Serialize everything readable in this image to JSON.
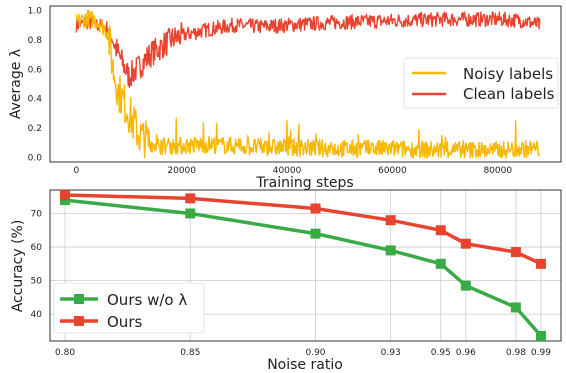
{
  "colors": {
    "noisy": "#f9b800",
    "clean": "#e8432e",
    "ours_wo": "#3aaa47",
    "ours": "#e8432e"
  },
  "chart_data": [
    {
      "type": "line",
      "xlabel": "Training steps",
      "ylabel": "Average λ",
      "xlim": [
        -5000,
        92000
      ],
      "ylim": [
        -0.03,
        1.03
      ],
      "xticks": [
        0,
        20000,
        40000,
        60000,
        80000
      ],
      "yticks": [
        0.0,
        0.2,
        0.4,
        0.6,
        0.8,
        1.0
      ],
      "xtick_labels": [
        "0",
        "20000",
        "40000",
        "60000",
        "80000"
      ],
      "ytick_labels": [
        "0.0",
        "0.2",
        "0.4",
        "0.6",
        "0.8",
        "1.0"
      ],
      "grid": false,
      "legend_placement": "center-right",
      "series": [
        {
          "name": "Noisy labels",
          "x": [
            0,
            2000,
            4000,
            6000,
            7000,
            8000,
            9000,
            10000,
            11000,
            12000,
            14000,
            16000,
            20000,
            25000,
            30000,
            35000,
            40000,
            50000,
            60000,
            70000,
            80000,
            85000,
            88000
          ],
          "y": [
            0.92,
            0.95,
            0.93,
            0.85,
            0.6,
            0.45,
            0.38,
            0.3,
            0.22,
            0.15,
            0.1,
            0.08,
            0.08,
            0.09,
            0.08,
            0.07,
            0.07,
            0.06,
            0.06,
            0.05,
            0.05,
            0.06,
            0.06
          ],
          "noise_amplitude": 0.06
        },
        {
          "name": "Clean labels",
          "x": [
            0,
            2000,
            4000,
            6000,
            8000,
            10000,
            12000,
            14000,
            16000,
            18000,
            20000,
            25000,
            30000,
            35000,
            40000,
            50000,
            60000,
            70000,
            80000,
            85000,
            88000
          ],
          "y": [
            0.9,
            0.92,
            0.9,
            0.88,
            0.7,
            0.55,
            0.62,
            0.7,
            0.75,
            0.8,
            0.83,
            0.87,
            0.9,
            0.89,
            0.9,
            0.92,
            0.93,
            0.94,
            0.94,
            0.93,
            0.9
          ],
          "noise_amplitude": 0.05
        }
      ]
    },
    {
      "type": "line",
      "xlabel": "Noise ratio",
      "ylabel": "Accuracy (%)",
      "categories": [
        "0.80",
        "0.85",
        "0.90",
        "0.93",
        "0.95",
        "0.96",
        "0.98",
        "0.99"
      ],
      "x": [
        0.8,
        0.85,
        0.9,
        0.93,
        0.95,
        0.96,
        0.98,
        0.99
      ],
      "xlim": [
        0.794,
        0.998
      ],
      "ylim": [
        32,
        77
      ],
      "yticks": [
        40,
        50,
        60,
        70
      ],
      "ytick_labels": [
        "40",
        "50",
        "60",
        "70"
      ],
      "grid": true,
      "legend_placement": "lower-left",
      "series": [
        {
          "name": "Ours w/o λ",
          "values": [
            74.0,
            70.0,
            64.0,
            59.0,
            55.0,
            48.5,
            42.0,
            33.5
          ]
        },
        {
          "name": "Ours",
          "values": [
            75.5,
            74.5,
            71.5,
            68.0,
            65.0,
            61.0,
            58.5,
            55.0
          ]
        }
      ]
    }
  ]
}
